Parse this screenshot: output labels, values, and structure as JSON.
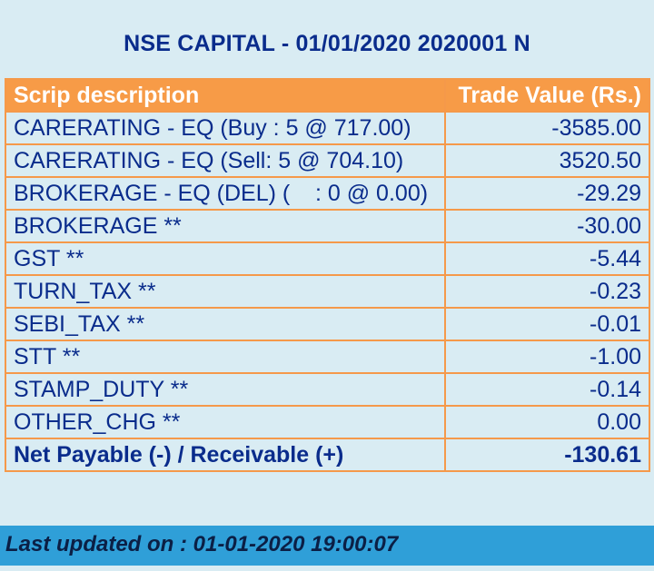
{
  "header": {
    "title": "NSE CAPITAL - 01/01/2020 2020001 N"
  },
  "table": {
    "columns": [
      "Scrip description",
      "Trade Value (Rs.)"
    ],
    "rows": [
      {
        "description": "CARERATING - EQ (Buy : 5 @ 717.00)",
        "value": "-3585.00"
      },
      {
        "description": "CARERATING - EQ (Sell: 5 @ 704.10)",
        "value": "3520.50"
      },
      {
        "description": "BROKERAGE - EQ (DEL) (    : 0 @ 0.00)",
        "value": "-29.29"
      },
      {
        "description": "BROKERAGE **",
        "value": "-30.00"
      },
      {
        "description": "GST **",
        "value": "-5.44"
      },
      {
        "description": "TURN_TAX **",
        "value": "-0.23"
      },
      {
        "description": "SEBI_TAX **",
        "value": "-0.01"
      },
      {
        "description": "STT **",
        "value": "-1.00"
      },
      {
        "description": "STAMP_DUTY **",
        "value": "-0.14"
      },
      {
        "description": "OTHER_CHG **",
        "value": "0.00"
      }
    ],
    "total": {
      "description": "Net Payable (-) / Receivable (+)",
      "value": "-130.61"
    }
  },
  "footer": {
    "last_updated": "Last updated on : 01-01-2020 19:00:07"
  },
  "colors": {
    "background": "#d9ecf3",
    "header_fill": "#f79b47",
    "border": "#f5994a",
    "text": "#0a2c8c",
    "footer_bar": "#2f9fd8"
  }
}
